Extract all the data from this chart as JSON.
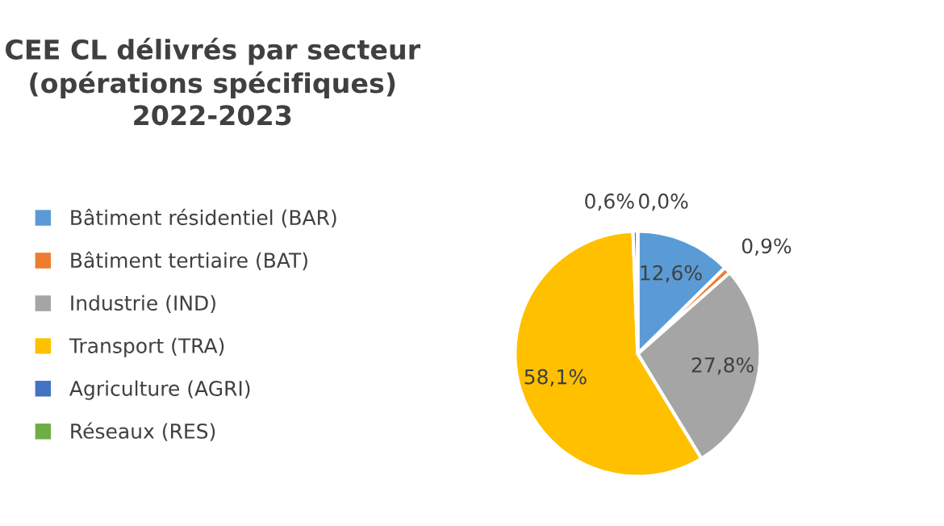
{
  "chart_data": {
    "type": "pie",
    "title": "CEE CL délivrés par secteur\n(opérations spécifiques)\n2022-2023",
    "categories": [
      "Bâtiment résidentiel (BAR)",
      "Bâtiment tertiaire (BAT)",
      "Industrie (IND)",
      "Transport (TRA)",
      "Agriculture (AGRI)",
      "Réseaux (RES)"
    ],
    "values": [
      12.6,
      0.9,
      27.8,
      58.1,
      0.6,
      0.0
    ],
    "value_labels": [
      "12,6%",
      "0,9%",
      "27,8%",
      "58,1%",
      "0,6%",
      "0,0%"
    ],
    "colors": [
      "#5b9bd5",
      "#ed7d31",
      "#a5a5a5",
      "#ffc000",
      "#4472c4",
      "#70ad47"
    ],
    "legend": "left"
  }
}
